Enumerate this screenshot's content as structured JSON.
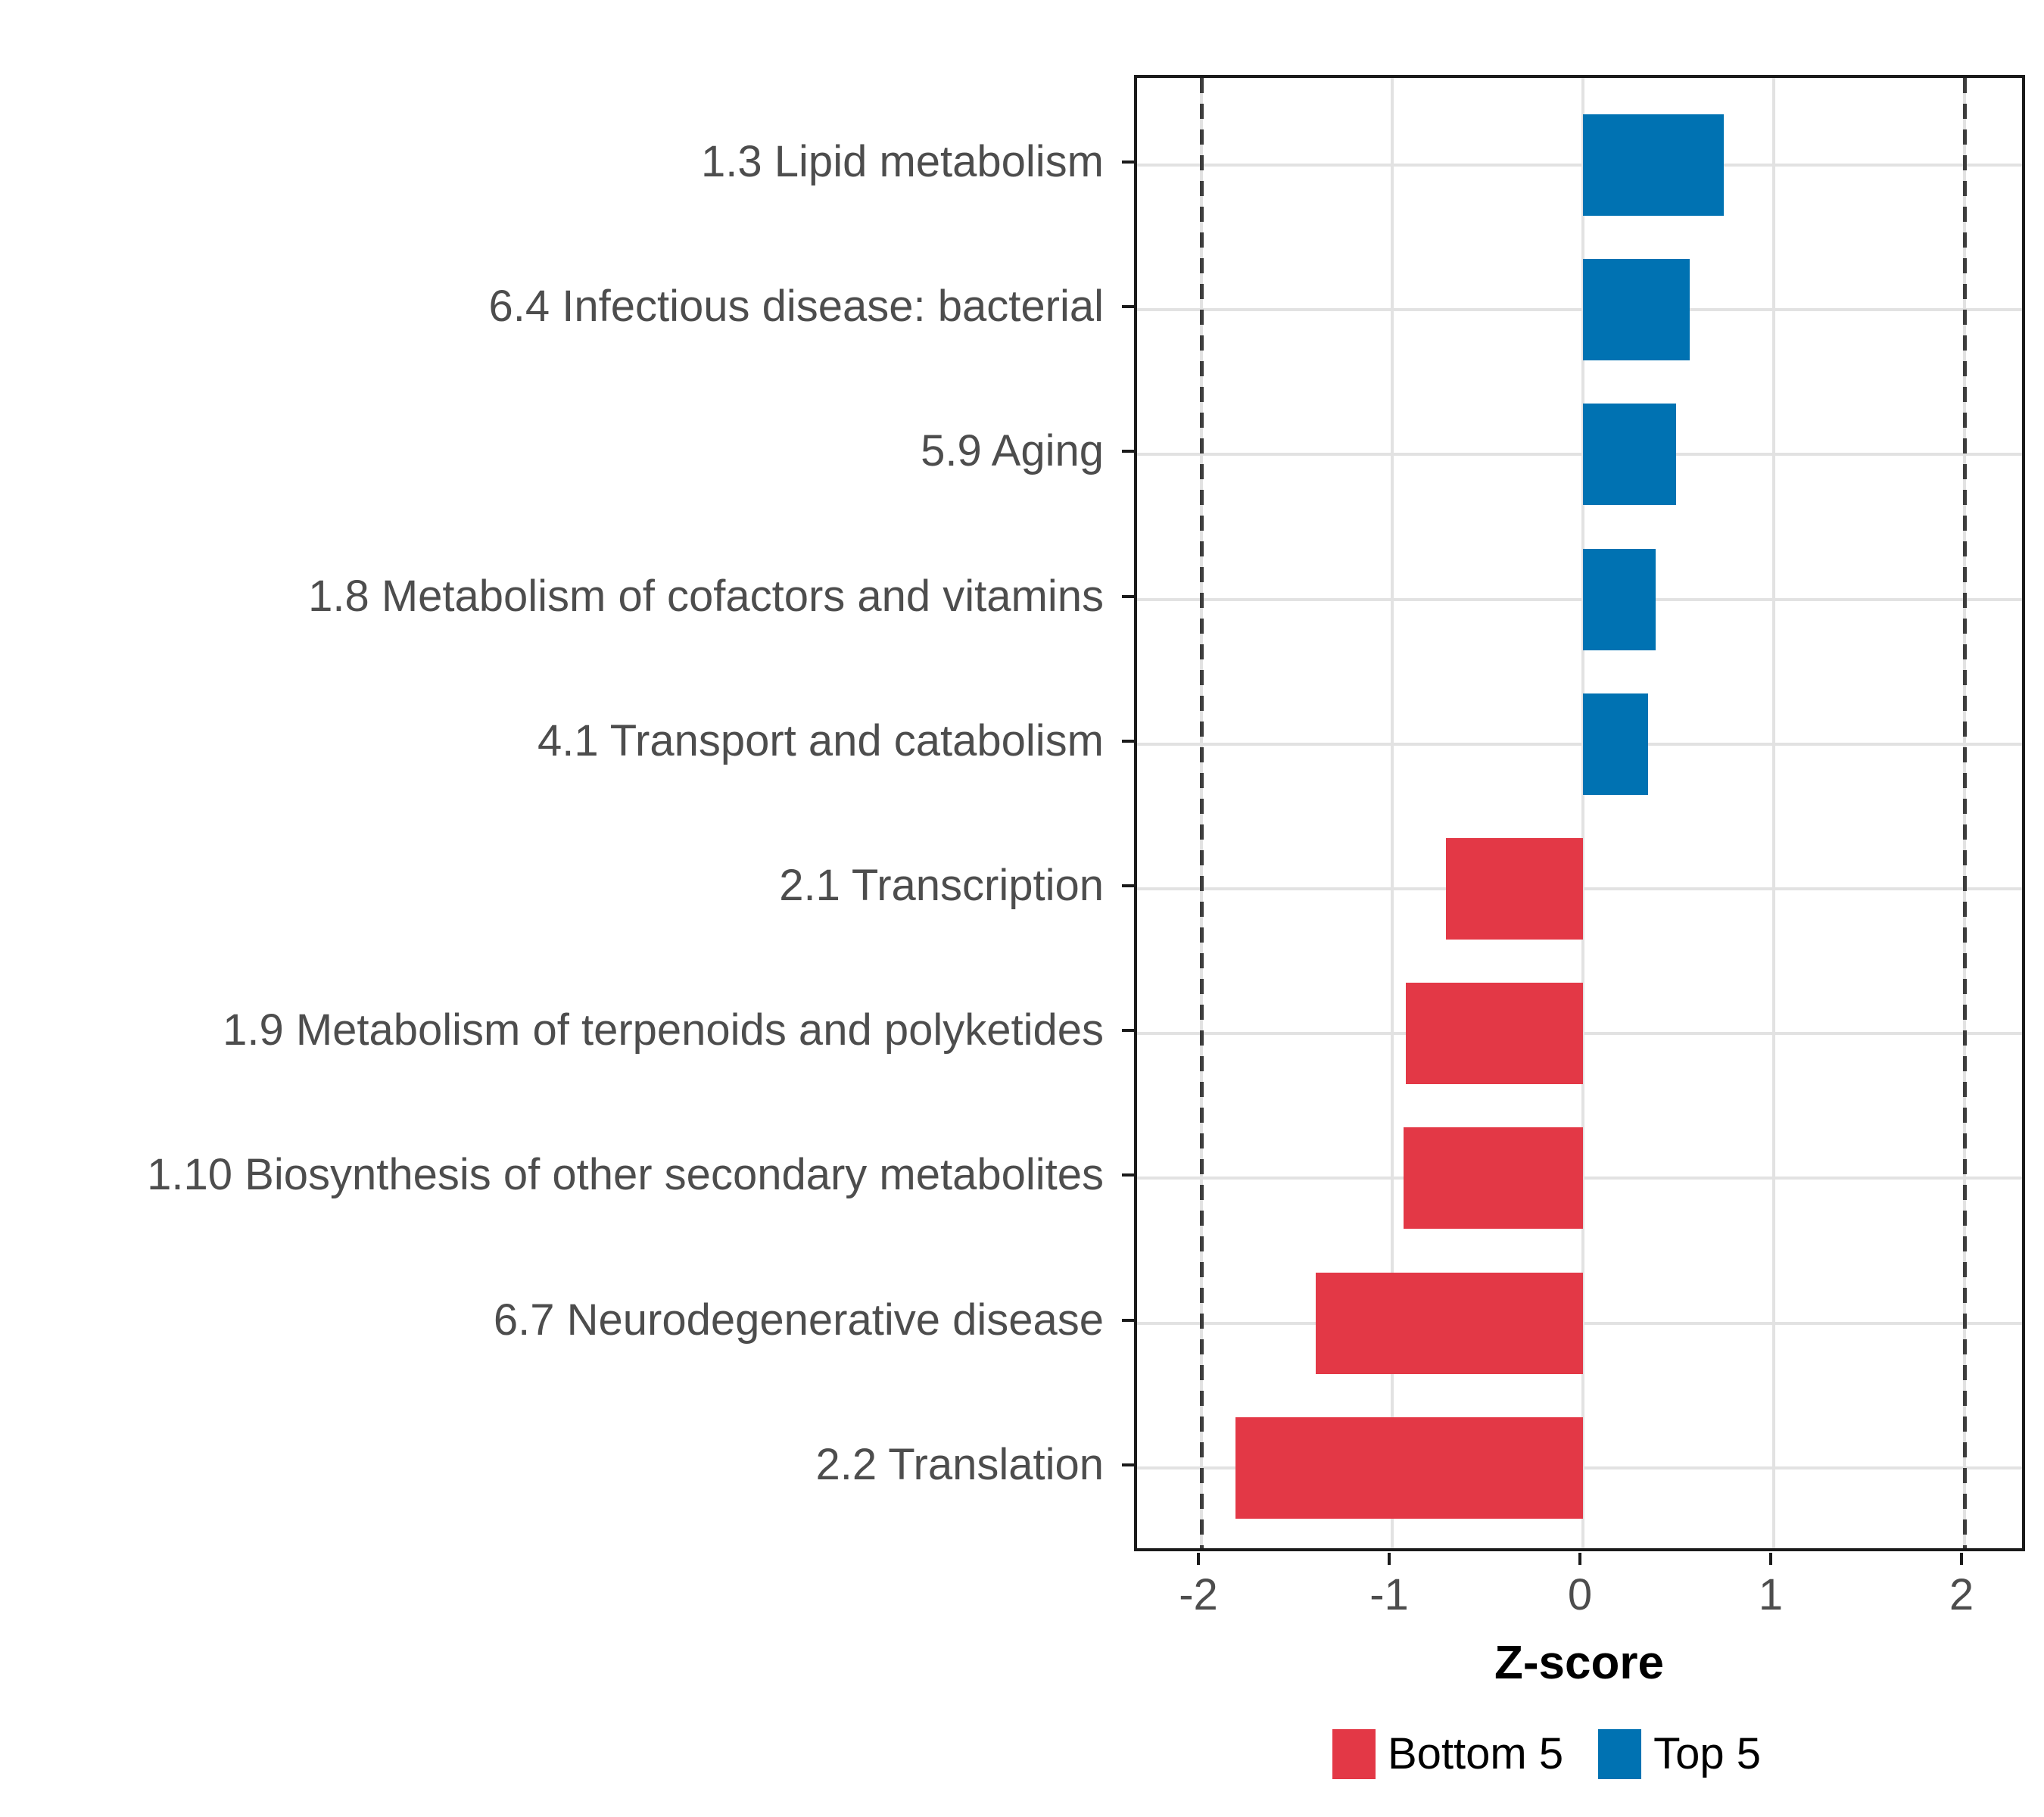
{
  "chart_data": {
    "type": "bar",
    "orientation": "horizontal",
    "title": "",
    "xlabel": "Z-score",
    "categories": [
      "1.3 Lipid metabolism",
      "6.4 Infectious disease: bacterial",
      "5.9 Aging",
      "1.8 Metabolism of cofactors and vitamins",
      "4.1 Transport and catabolism",
      "2.1 Transcription",
      "1.9 Metabolism of terpenoids and polyketides",
      "1.10 Biosynthesis of other secondary metabolites",
      "6.7 Neurodegenerative disease",
      "2.2 Translation"
    ],
    "values": [
      0.74,
      0.56,
      0.49,
      0.38,
      0.34,
      -0.72,
      -0.93,
      -0.94,
      -1.4,
      -1.82
    ],
    "series_group_per_bar": [
      "Top 5",
      "Top 5",
      "Top 5",
      "Top 5",
      "Top 5",
      "Bottom 5",
      "Bottom 5",
      "Bottom 5",
      "Bottom 5",
      "Bottom 5"
    ],
    "x_ticks": [
      -2,
      -1,
      0,
      1,
      2
    ],
    "x_tick_labels": [
      "-2",
      "-1",
      "0",
      "1",
      "2"
    ],
    "xlim": [
      -2.34,
      2.33
    ],
    "reference_lines_dashed": [
      -2,
      2
    ],
    "grid": true,
    "legend_position": "bottom",
    "legend": [
      {
        "label": "Bottom 5",
        "color": "#e33846"
      },
      {
        "label": "Top 5",
        "color": "#0072b2"
      }
    ],
    "colors": {
      "positive": "#0072b2",
      "negative": "#e33846",
      "gridline": "#e2e2e2",
      "panel_border": "#1a1a1a",
      "axis_text": "#4d4d4d",
      "reference_line": "#3d3d3d"
    }
  }
}
